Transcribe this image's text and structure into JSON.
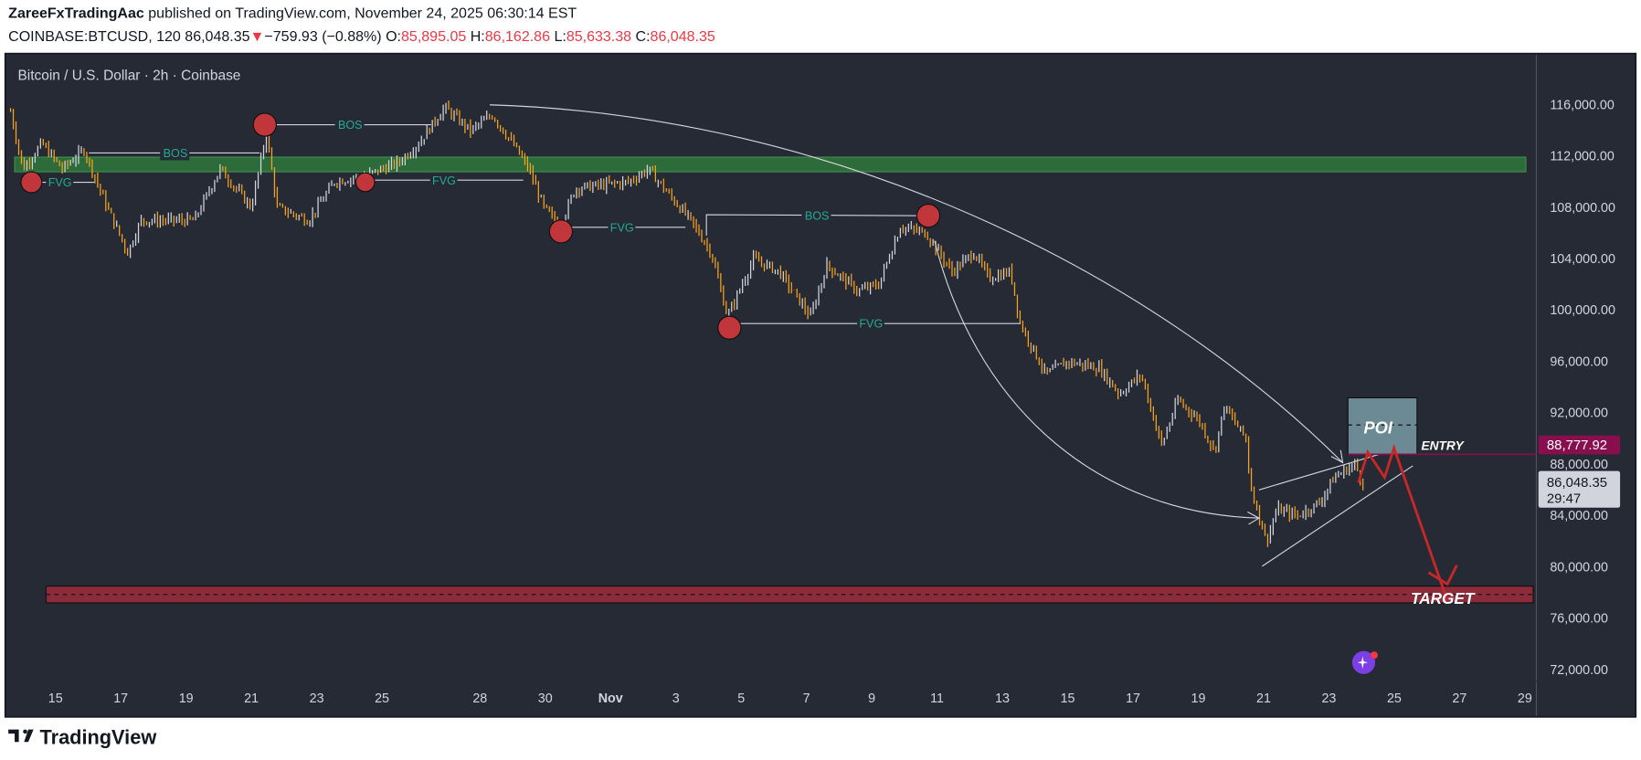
{
  "header": {
    "author": "ZareeFxTradingAac",
    "published": " published on TradingView.com, November 24, 2025 06:30:14 EST",
    "symbol": "COINBASE:BTCUSD, 120",
    "last": "86,048.35",
    "change": "−759.93 (−0.88%)",
    "o_label": "O:",
    "o": "85,895.05",
    "h_label": "H:",
    "h": "86,162.86",
    "l_label": "L:",
    "l": "85,633.38",
    "c_label": "C:",
    "c": "86,048.35"
  },
  "chart": {
    "title": "Bitcoin / U.S. Dollar · 2h · Coinbase",
    "price_ticks": [
      "116,000.00",
      "112,000.00",
      "108,000.00",
      "104,000.00",
      "100,000.00",
      "96,000.00",
      "92,000.00",
      "88,000.00",
      "84,000.00",
      "80,000.00",
      "76,000.00",
      "72,000.00"
    ],
    "date_ticks": [
      "15",
      "17",
      "19",
      "21",
      "23",
      "25",
      "28",
      "30",
      "Nov",
      "3",
      "5",
      "7",
      "9",
      "11",
      "13",
      "15",
      "17",
      "19",
      "21",
      "23",
      "25",
      "27",
      "29"
    ],
    "entry_price_label": "88,777.92",
    "current_price_label": "86,048.35",
    "countdown": "29:47",
    "annotations": {
      "bos": "BOS",
      "fvg": "FVG",
      "poi": "POI",
      "entry": "ENTRY",
      "target": "TARGET"
    },
    "colors": {
      "background": "#262a35",
      "up_bar": "#d1d4dc",
      "down_bar": "#f7a21b",
      "supply_zone": "#2e6b3a",
      "target_zone": "#8c2b3a",
      "poi_zone": "#6b8a94",
      "entry_line": "#880e4f",
      "arrow_red": "#c62828",
      "swing_circle": "#c0363a",
      "annotation_text": "#22ab94"
    }
  },
  "chart_data": {
    "type": "ohlc-bars",
    "title": "Bitcoin / U.S. Dollar · 2h · Coinbase",
    "ylim": [
      72000,
      118000
    ],
    "price_path": [
      [
        "2025-10-13T15:00",
        115500
      ],
      [
        "2025-10-14T00:00",
        111000
      ],
      [
        "2025-10-14T14:00",
        113000
      ],
      [
        "2025-10-15T05:00",
        111000
      ],
      [
        "2025-10-15T21:00",
        112500
      ],
      [
        "2025-10-16T12:00",
        108500
      ],
      [
        "2025-10-17T05:00",
        104500
      ],
      [
        "2025-10-17T15:00",
        107000
      ],
      [
        "2025-10-19T06:00",
        107000
      ],
      [
        "2025-10-20T01:00",
        111000
      ],
      [
        "2025-10-21T00:00",
        108000
      ],
      [
        "2025-10-21T11:00",
        113800
      ],
      [
        "2025-10-21T19:00",
        108000
      ],
      [
        "2025-10-22T18:00",
        107000
      ],
      [
        "2025-10-23T13:00",
        110000
      ],
      [
        "2025-10-24T12:00",
        110500
      ],
      [
        "2025-10-25T12:00",
        111500
      ],
      [
        "2025-10-26T03:00",
        113000
      ],
      [
        "2025-10-26T22:00",
        115800
      ],
      [
        "2025-10-27T17:00",
        114000
      ],
      [
        "2025-10-28T09:00",
        115200
      ],
      [
        "2025-10-29T00:00",
        113000
      ],
      [
        "2025-10-29T12:00",
        111000
      ],
      [
        "2025-10-29T23:00",
        108000
      ],
      [
        "2025-10-30T11:00",
        106500
      ],
      [
        "2025-10-30T22:00",
        109500
      ],
      [
        "2025-11-01T13:00",
        110000
      ],
      [
        "2025-11-02T04:00",
        111000
      ],
      [
        "2025-11-02T19:00",
        109000
      ],
      [
        "2025-11-03T11:00",
        107000
      ],
      [
        "2025-11-04T02:00",
        104500
      ],
      [
        "2025-11-04T14:00",
        99500
      ],
      [
        "2025-11-05T09:00",
        104000
      ],
      [
        "2025-11-06T04:00",
        103000
      ],
      [
        "2025-11-07T03:00",
        99500
      ],
      [
        "2025-11-07T15:00",
        103500
      ],
      [
        "2025-11-08T14:00",
        101500
      ],
      [
        "2025-11-09T05:00",
        102000
      ],
      [
        "2025-11-09T21:00",
        106500
      ],
      [
        "2025-11-10T16:00",
        106000
      ],
      [
        "2025-11-11T11:00",
        103000
      ],
      [
        "2025-11-12T03:00",
        104500
      ],
      [
        "2025-11-12T14:00",
        102500
      ],
      [
        "2025-11-13T06:00",
        103000
      ],
      [
        "2025-11-13T13:00",
        99000
      ],
      [
        "2025-11-14T08:00",
        95000
      ],
      [
        "2025-11-15T00:00",
        96000
      ],
      [
        "2025-11-15T23:00",
        95500
      ],
      [
        "2025-11-16T14:00",
        93500
      ],
      [
        "2025-11-17T06:00",
        95000
      ],
      [
        "2025-11-17T21:00",
        89500
      ],
      [
        "2025-11-18T09:00",
        93000
      ],
      [
        "2025-11-19T00:00",
        91500
      ],
      [
        "2025-11-19T12:00",
        89000
      ],
      [
        "2025-11-19T19:00",
        92500
      ],
      [
        "2025-11-20T11:00",
        90000
      ],
      [
        "2025-11-20T14:00",
        86500
      ],
      [
        "2025-11-21T02:00",
        82000
      ],
      [
        "2025-11-21T10:00",
        84500
      ],
      [
        "2025-11-22T01:00",
        84000
      ],
      [
        "2025-11-22T17:00",
        85000
      ],
      [
        "2025-11-23T04:00",
        87000
      ],
      [
        "2025-11-23T19:00",
        88000
      ],
      [
        "2025-11-24T03:00",
        86048.35
      ]
    ],
    "supply_zone": [
      110500,
      111900
    ],
    "target_zone": [
      77000,
      78500
    ],
    "poi_zone": [
      88800,
      93200
    ],
    "entry": 88777.92
  },
  "footer": {
    "brand": "TradingView"
  }
}
